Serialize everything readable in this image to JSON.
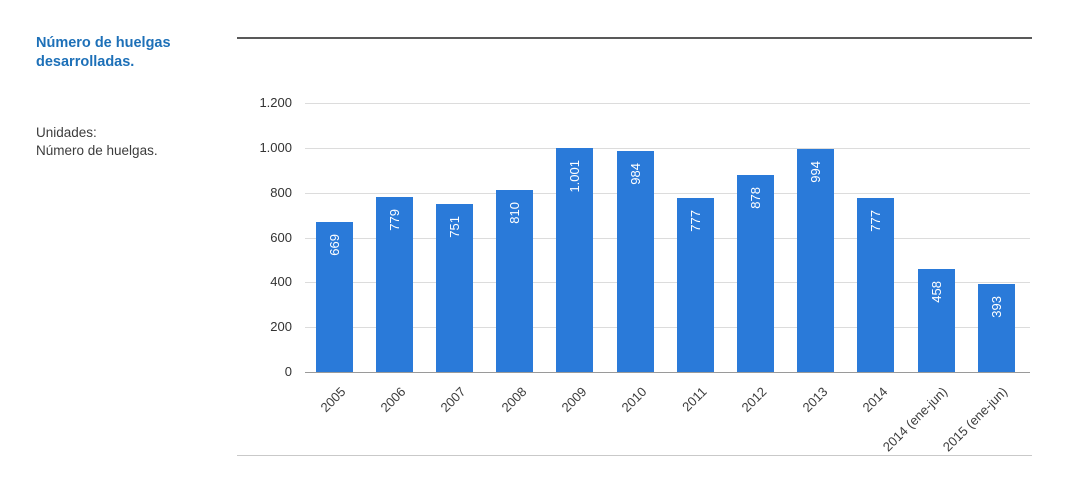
{
  "sidebar": {
    "title_line1": "Número de huelgas",
    "title_line2": "desarrolladas.",
    "units_label": "Unidades:",
    "units_value": "Número de huelgas."
  },
  "colors": {
    "title": "#1d70b8",
    "bar": "#2a7ad9",
    "bar_label_text": "#ffffff"
  },
  "chart_data": {
    "type": "bar",
    "title": "Número de huelgas desarrolladas.",
    "xlabel": "",
    "ylabel": "Número de huelgas",
    "categories": [
      "2005",
      "2006",
      "2007",
      "2008",
      "2009",
      "2010",
      "2011",
      "2012",
      "2013",
      "2014",
      "2014 (ene-jun)",
      "2015 (ene-jun)"
    ],
    "values": [
      669,
      779,
      751,
      810,
      1001,
      984,
      777,
      878,
      994,
      777,
      458,
      393
    ],
    "value_labels": [
      "669",
      "779",
      "751",
      "810",
      "1.001",
      "984",
      "777",
      "878",
      "994",
      "777",
      "458",
      "393"
    ],
    "ylim": [
      0,
      1200
    ],
    "yticks": [
      0,
      200,
      400,
      600,
      800,
      1000,
      1200
    ],
    "ytick_labels": [
      "0",
      "200",
      "400",
      "600",
      "800",
      "1.000",
      "1.200"
    ],
    "grid": true,
    "legend": false
  }
}
